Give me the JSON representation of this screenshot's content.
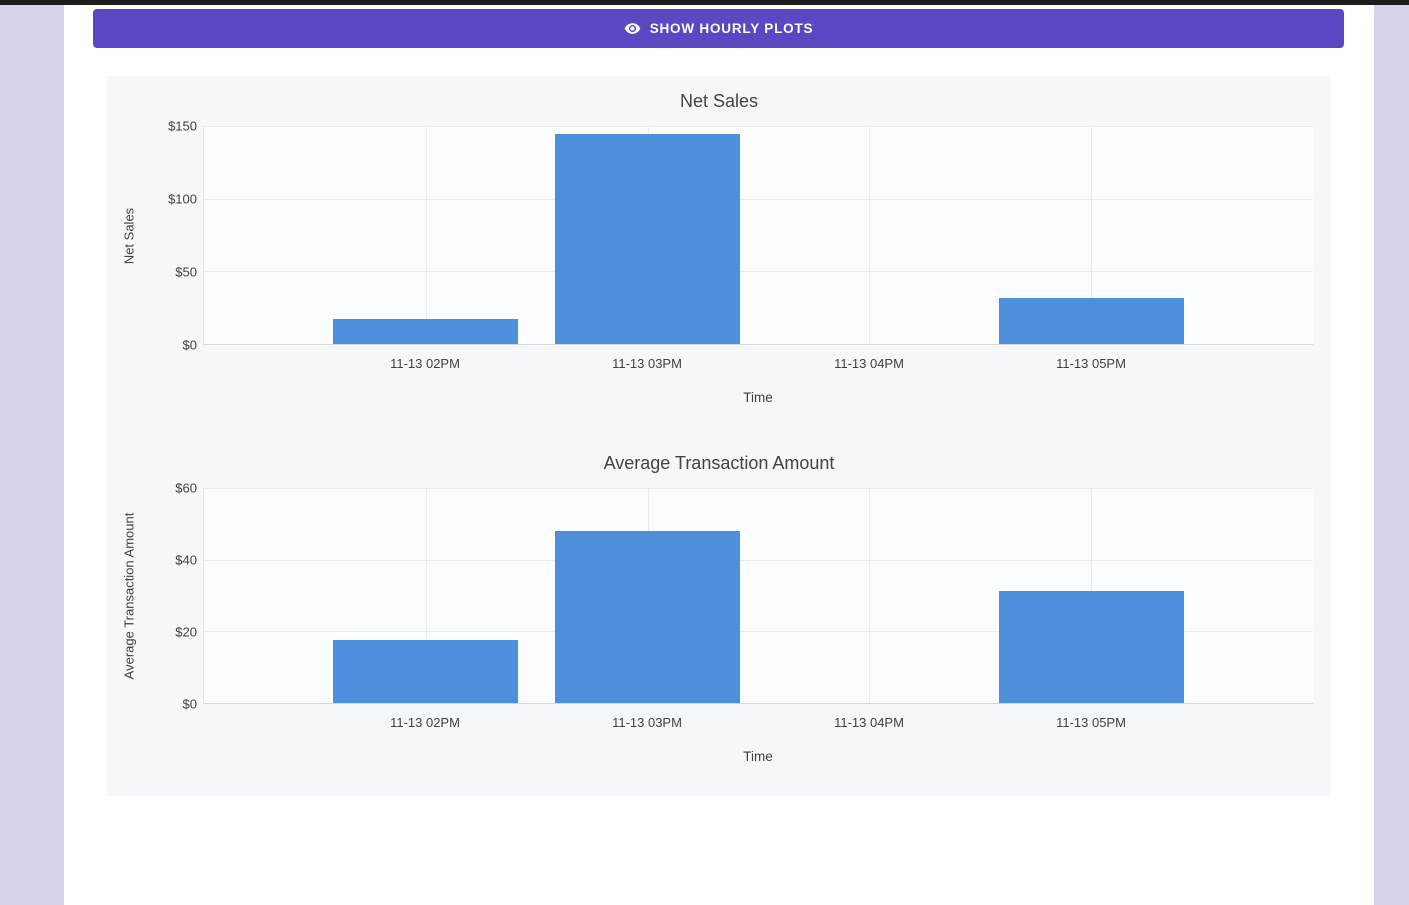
{
  "page": {
    "background_color": "#d7d3e9",
    "top_strip_color": "#1e1e1f",
    "accent_color": "#5a48c2",
    "bar_color": "#4d8fdb"
  },
  "toolbar": {
    "show_hourly_plots_label": "SHOW HOURLY PLOTS",
    "icon": "eye-icon"
  },
  "chart_data": [
    {
      "type": "bar",
      "title": "Net Sales",
      "xlabel": "Time",
      "ylabel": "Net Sales",
      "categories": [
        "11-13 02PM",
        "11-13 03PM",
        "11-13 04PM",
        "11-13 05PM"
      ],
      "values": [
        17.5,
        144.5,
        0,
        31.5
      ],
      "ylim": [
        0,
        150
      ],
      "yticks": [
        0,
        50,
        100,
        150
      ],
      "ytick_labels": [
        "$0",
        "$50",
        "$100",
        "$150"
      ],
      "grid": true,
      "legend": "none",
      "bar_color": "#4d8fdb"
    },
    {
      "type": "bar",
      "title": "Average Transaction Amount",
      "xlabel": "Time",
      "ylabel": "Average Transaction Amount",
      "categories": [
        "11-13 02PM",
        "11-13 03PM",
        "11-13 04PM",
        "11-13 05PM"
      ],
      "values": [
        17.5,
        48,
        0,
        31.3
      ],
      "ylim": [
        0,
        60
      ],
      "yticks": [
        0,
        20,
        40,
        60
      ],
      "ytick_labels": [
        "$0",
        "$20",
        "$40",
        "$60"
      ],
      "grid": true,
      "legend": "none",
      "bar_color": "#4d8fdb"
    }
  ]
}
